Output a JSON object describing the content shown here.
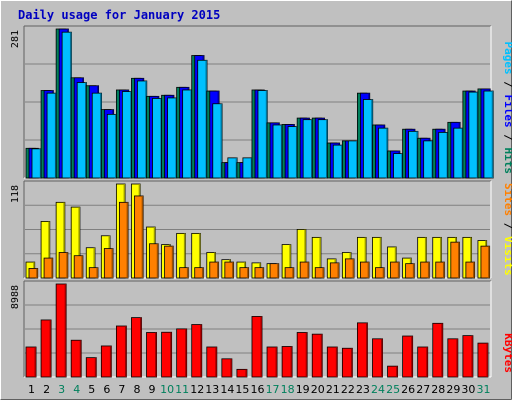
{
  "chart_data": {
    "type": "bar",
    "title": "Daily usage for January 2015",
    "categories": [
      "1",
      "2",
      "3",
      "4",
      "5",
      "6",
      "7",
      "8",
      "9",
      "10",
      "11",
      "12",
      "13",
      "14",
      "15",
      "16",
      "17",
      "18",
      "19",
      "20",
      "21",
      "22",
      "23",
      "24",
      "25",
      "26",
      "27",
      "28",
      "29",
      "30",
      "31"
    ],
    "weekend_days": [
      "3",
      "4",
      "10",
      "11",
      "17",
      "18",
      "24",
      "25",
      "31"
    ],
    "panels": [
      {
        "id": "hits",
        "ymax_label": "281",
        "ymax": 281,
        "legend": [
          {
            "text": "Hits",
            "color": "#00805c"
          },
          {
            "text": "Files",
            "color": "#0000ff"
          },
          {
            "text": "Pages",
            "color": "#00c0ff"
          }
        ],
        "series": [
          {
            "name": "Hits",
            "color": "#00805c",
            "values": [
              56,
              165,
              281,
              189,
              174,
              129,
              166,
              188,
              154,
              156,
              171,
              231,
              164,
              29,
              29,
              166,
              104,
              101,
              113,
              113,
              66,
              70,
              160,
              100,
              51,
              92,
              75,
              92,
              105,
              164,
              168
            ]
          },
          {
            "name": "Files",
            "color": "#0000ff",
            "values": [
              56,
              165,
              281,
              189,
              174,
              129,
              166,
              188,
              154,
              156,
              171,
              231,
              164,
              29,
              29,
              166,
              104,
              101,
              113,
              113,
              66,
              70,
              160,
              100,
              51,
              92,
              75,
              92,
              105,
              164,
              168
            ]
          },
          {
            "name": "Pages",
            "color": "#00c0ff",
            "values": [
              55,
              160,
              275,
              180,
              160,
              120,
              163,
              183,
              150,
              151,
              166,
              222,
              140,
              38,
              38,
              165,
              100,
              97,
              110,
              110,
              62,
              70,
              148,
              94,
              46,
              88,
              70,
              86,
              94,
              162,
              164
            ]
          }
        ]
      },
      {
        "id": "visits",
        "ymax_label": "118",
        "ymax": 118,
        "legend": [
          {
            "text": "Visits",
            "color": "#ffff00"
          },
          {
            "text": "Sites",
            "color": "#ff8000"
          }
        ],
        "series": [
          {
            "name": "Visits",
            "color": "#ffff00",
            "values": [
              20,
              71,
              95,
              89,
              38,
              53,
              118,
              118,
              64,
              42,
              56,
              56,
              32,
              23,
              20,
              19,
              18,
              42,
              61,
              51,
              24,
              32,
              51,
              51,
              39,
              25,
              51,
              51,
              51,
              51,
              47
            ]
          },
          {
            "name": "Sites",
            "color": "#ff8000",
            "values": [
              12,
              25,
              32,
              28,
              13,
              37,
              95,
              103,
              43,
              40,
              13,
              13,
              20,
              20,
              13,
              13,
              18,
              13,
              20,
              13,
              19,
              24,
              20,
              13,
              20,
              18,
              20,
              20,
              45,
              20,
              40
            ]
          }
        ]
      },
      {
        "id": "kbytes",
        "ymax_label": "8988",
        "ymax": 8988,
        "legend": [
          {
            "text": "KBytes",
            "color": "#ff0000"
          }
        ],
        "series": [
          {
            "name": "KBytes",
            "color": "#ff0000",
            "values": [
              2900,
              5514,
              8988,
              3554,
              1872,
              3000,
              4929,
              5741,
              4302,
              4326,
              4653,
              5071,
              2900,
              1758,
              740,
              5851,
              2900,
              2949,
              4302,
              4141,
              2900,
              2779,
              5233,
              3692,
              1049,
              3960,
              2900,
              5189,
              3692,
              4000,
              3275
            ]
          }
        ]
      }
    ]
  }
}
